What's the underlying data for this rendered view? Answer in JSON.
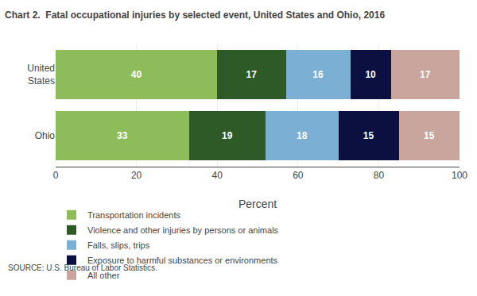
{
  "chart_data": {
    "type": "bar",
    "orientation": "horizontal",
    "stacked": true,
    "data_labels": true,
    "title": "Chart 2.  Fatal occupational injuries by selected event, United States and Ohio, 2016",
    "categories": [
      "United\nStates",
      "Ohio"
    ],
    "series": [
      {
        "name": "Transportation incidents",
        "color": "#8fbc5a",
        "values": [
          40,
          33
        ]
      },
      {
        "name": "Violence and other injuries by persons or animals",
        "color": "#2d5a27",
        "values": [
          17,
          19
        ]
      },
      {
        "name": "Falls, slips, trips",
        "color": "#7bafd4",
        "values": [
          16,
          18
        ]
      },
      {
        "name": "Exposure to harmful substances or environments",
        "color": "#0b1040",
        "values": [
          10,
          15
        ]
      },
      {
        "name": "All other",
        "color": "#c9a59d",
        "values": [
          17,
          15
        ]
      }
    ],
    "xlabel": "Percent",
    "xlim": [
      0,
      100
    ],
    "xticks": [
      0,
      20,
      40,
      60,
      80,
      100
    ],
    "grid": true,
    "legend": "bottom",
    "annotations": [
      "SOURCE: U.S. Bureau of Labor Statistics."
    ]
  }
}
